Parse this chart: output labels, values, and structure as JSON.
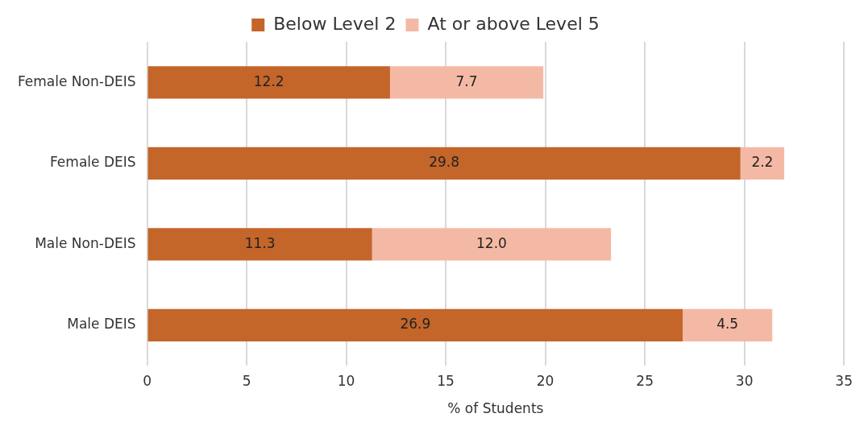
{
  "chart_data": {
    "type": "bar",
    "orientation": "horizontal",
    "stacked": true,
    "categories": [
      "Female Non-DEIS",
      "Female DEIS",
      "Male Non-DEIS",
      "Male DEIS"
    ],
    "series": [
      {
        "name": "Below Level 2",
        "color": "#c4652a",
        "values": [
          12.2,
          29.8,
          11.3,
          26.9
        ],
        "value_labels": [
          "12.2",
          "29.8",
          "11.3",
          "26.9"
        ]
      },
      {
        "name": "At or above Level 5",
        "color": "#f4b9a4",
        "values": [
          7.7,
          2.2,
          12.0,
          4.5
        ],
        "value_labels": [
          "7.7",
          "2.2",
          "12.0",
          "4.5"
        ]
      }
    ],
    "xlabel": "% of Students",
    "xlim": [
      0,
      35
    ],
    "xticks": [
      0,
      5,
      10,
      15,
      20,
      25,
      30,
      35
    ],
    "grid": "x",
    "legend": "top"
  }
}
